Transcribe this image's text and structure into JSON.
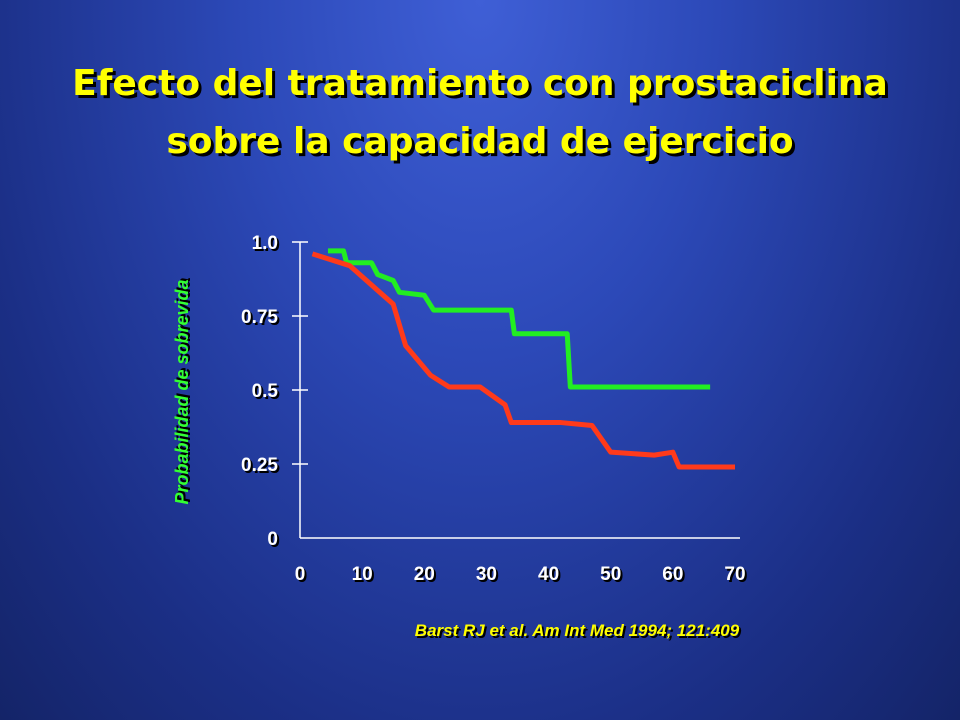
{
  "title_line1": "Efecto del tratamiento con prostaciclina",
  "title_line2": "sobre la capacidad de ejercicio",
  "citation": "Barst RJ et al. Am Int Med 1994; 121:409",
  "colors": {
    "title": "#ffff00",
    "ylabel": "#33ff33",
    "citation": "#ffff00",
    "green_series": "#22ee22",
    "red_series": "#ff3a1a",
    "axis": "#ffffff"
  },
  "chart_data": {
    "type": "line",
    "title": "",
    "xlabel": "",
    "ylabel": "Probabilidad de sobrevida",
    "xlim": [
      0,
      70
    ],
    "ylim": [
      0,
      1.0
    ],
    "x_ticks": [
      "0",
      "10",
      "20",
      "30",
      "40",
      "50",
      "60",
      "70"
    ],
    "x_tick_values": [
      0,
      10,
      20,
      30,
      40,
      50,
      60,
      70
    ],
    "y_ticks": [
      "1.0",
      "0.75",
      "0.5",
      "0.25",
      "0"
    ],
    "y_tick_values": [
      1.0,
      0.75,
      0.5,
      0.25,
      0
    ],
    "grid": false,
    "series": [
      {
        "color": "#22ee22",
        "points": [
          [
            4.5,
            0.97
          ],
          [
            7,
            0.97
          ],
          [
            7.5,
            0.93
          ],
          [
            11.5,
            0.93
          ],
          [
            12.5,
            0.89
          ],
          [
            15,
            0.87
          ],
          [
            16,
            0.83
          ],
          [
            20,
            0.82
          ],
          [
            21.5,
            0.77
          ],
          [
            34,
            0.77
          ],
          [
            34.5,
            0.69
          ],
          [
            43,
            0.69
          ],
          [
            43.5,
            0.51
          ],
          [
            66,
            0.51
          ]
        ]
      },
      {
        "color": "#ff3a1a",
        "points": [
          [
            2,
            0.96
          ],
          [
            8,
            0.92
          ],
          [
            15,
            0.79
          ],
          [
            17,
            0.65
          ],
          [
            21,
            0.55
          ],
          [
            24,
            0.51
          ],
          [
            29,
            0.51
          ],
          [
            33,
            0.45
          ],
          [
            34,
            0.39
          ],
          [
            42,
            0.39
          ],
          [
            47,
            0.38
          ],
          [
            50,
            0.29
          ],
          [
            57,
            0.28
          ],
          [
            60,
            0.29
          ],
          [
            61,
            0.24
          ],
          [
            70,
            0.24
          ]
        ]
      }
    ]
  }
}
